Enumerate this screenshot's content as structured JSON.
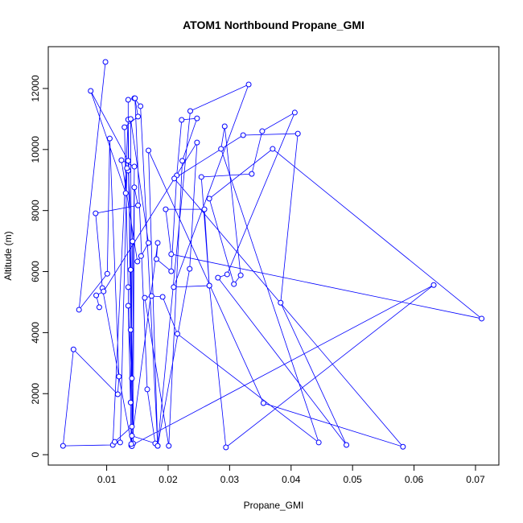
{
  "chart_data": {
    "type": "scatter-line",
    "title": "ATOM1 Northbound Propane_GMI",
    "x_label": "Propane_GMI",
    "y_label": "Altitude (m)",
    "color": "#0000ff",
    "x": [
      0.0098,
      0.0055,
      0.0101,
      0.0105,
      0.012,
      0.0118,
      0.0046,
      0.0029,
      0.011,
      0.0135,
      0.0139,
      0.0141,
      0.0135,
      0.0139,
      0.0142,
      0.0135,
      0.0135,
      0.0145,
      0.0155,
      0.0183,
      0.0236,
      0.0331,
      0.0209,
      0.0267,
      0.0294,
      0.0632,
      0.014,
      0.0141,
      0.0113,
      0.0122,
      0.0133,
      0.0131,
      0.0074,
      0.0135,
      0.0139,
      0.0143,
      0.0145,
      0.0151,
      0.0082,
      0.0093,
      0.0141,
      0.0139,
      0.0168,
      0.0156,
      0.015,
      0.0124,
      0.0145,
      0.0141,
      0.0179,
      0.0166,
      0.0146,
      0.0151,
      0.0129,
      0.0135,
      0.014,
      0.0183,
      0.0181,
      0.0205,
      0.0214,
      0.0222,
      0.0247,
      0.0223,
      0.0201,
      0.0162,
      0.0173,
      0.0191,
      0.0215,
      0.0445,
      0.0286,
      0.0292,
      0.0318,
      0.0307,
      0.0267,
      0.037,
      0.071,
      0.0205,
      0.0196,
      0.0259,
      0.0267,
      0.0254,
      0.0336,
      0.0353,
      0.0406,
      0.0296,
      0.0281,
      0.049,
      0.0383,
      0.0411,
      0.0322,
      0.021,
      0.0582,
      0.0355,
      0.0168,
      0.0183,
      0.0235,
      0.0247,
      0.0095,
      0.0083,
      0.0088
    ],
    "values": [
      12870,
      4750,
      5930,
      10360,
      2560,
      1980,
      3450,
      290,
      320,
      10980,
      4090,
      2500,
      4880,
      1710,
      6990,
      9310,
      11630,
      11680,
      11420,
      290,
      11260,
      12130,
      5490,
      5540,
      240,
      5560,
      300,
      920,
      420,
      400,
      9390,
      8570,
      11920,
      9630,
      6060,
      370,
      8760,
      8170,
      7910,
      5460,
      280,
      11000,
      6940,
      6510,
      6330,
      9650,
      9440,
      620,
      370,
      2140,
      11680,
      11080,
      10730,
      5490,
      350,
      6940,
      6410,
      6010,
      9150,
      10970,
      11020,
      9630,
      290,
      5140,
      5200,
      5170,
      3960,
      400,
      10020,
      10760,
      5880,
      5590,
      8390,
      10020,
      4460,
      6570,
      8040,
      8040,
      5540,
      9100,
      9200,
      10600,
      11210,
      5910,
      5800,
      320,
      4980,
      10520,
      10470,
      9050,
      260,
      1690,
      9970,
      290,
      6090,
      10230,
      5350,
      5220,
      4830
    ],
    "xlim": [
      0.0005,
      0.0738
    ],
    "ylim": [
      -340,
      13370
    ],
    "xticks": [
      0.01,
      0.02,
      0.03,
      0.04,
      0.05,
      0.06,
      0.07
    ],
    "yticks": [
      0,
      2000,
      4000,
      6000,
      8000,
      10000,
      12000
    ]
  }
}
